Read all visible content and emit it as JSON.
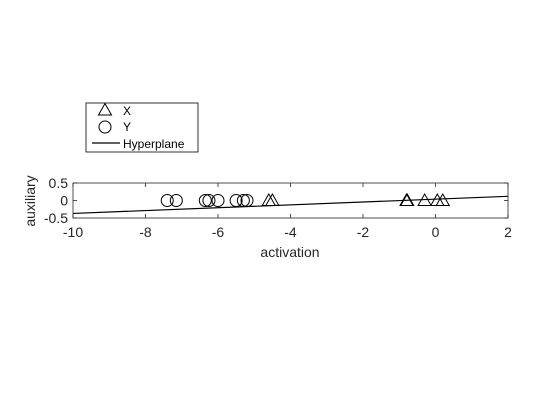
{
  "chart_data": {
    "type": "scatter",
    "xlabel": "activation",
    "ylabel": "auxiliary",
    "xlim": [
      -10,
      2
    ],
    "ylim": [
      -0.5,
      0.5
    ],
    "xticks": [
      -10,
      -8,
      -6,
      -4,
      -2,
      0,
      2
    ],
    "yticks": [
      0.5,
      0,
      -0.5
    ],
    "xtick_labels": [
      "-10",
      "-8",
      "-6",
      "-4",
      "-2",
      "0",
      "2"
    ],
    "ytick_labels": [
      "0.5",
      "0",
      "-0.5"
    ],
    "grid": false,
    "legend_position": "top-left, outside axes",
    "series": [
      {
        "name": "X",
        "marker": "triangle",
        "x": [
          -4.6,
          -4.5,
          -0.8,
          -0.78,
          -0.3,
          0.05,
          0.2
        ],
        "y": [
          0,
          0,
          0,
          0,
          0,
          0,
          0
        ]
      },
      {
        "name": "Y",
        "marker": "circle",
        "x": [
          -7.4,
          -7.15,
          -6.35,
          -6.25,
          -6.0,
          -5.5,
          -5.3,
          -5.2
        ],
        "y": [
          0,
          0,
          0,
          0,
          0,
          0,
          0,
          0
        ]
      },
      {
        "name": "Hyperplane",
        "type": "line",
        "x": [
          -10,
          2
        ],
        "y": [
          -0.37,
          0.12
        ]
      }
    ],
    "colors": {
      "marker": "#000000",
      "line": "#000000",
      "axes": "#262626"
    }
  }
}
